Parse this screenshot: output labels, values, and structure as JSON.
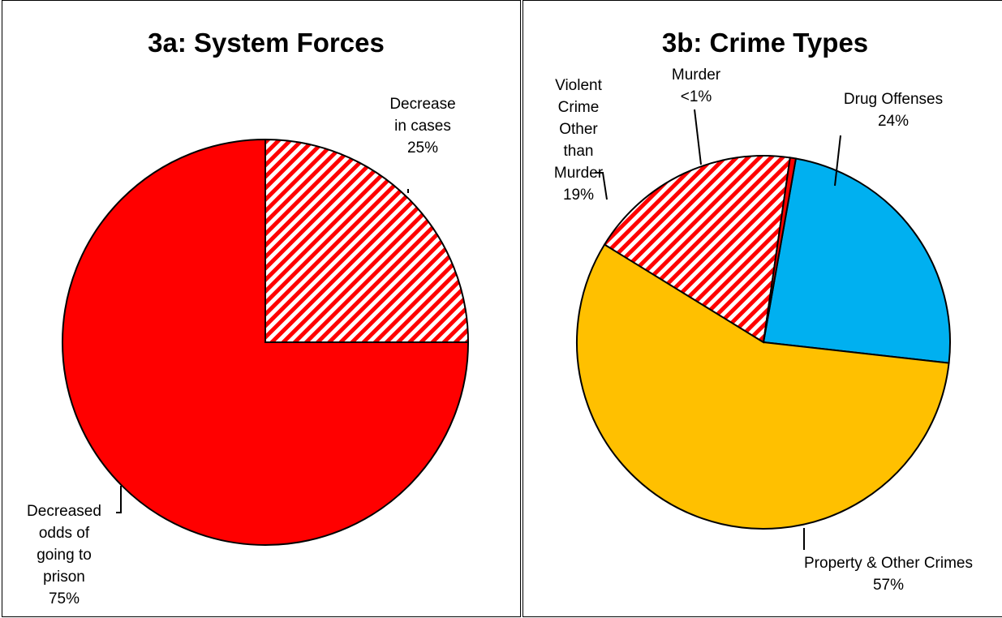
{
  "chart_data": [
    {
      "type": "pie",
      "title": "3a: System Forces",
      "slices": [
        {
          "label": [
            "Decrease",
            "in cases"
          ],
          "pct_label": "25%",
          "value": 25,
          "color": "#ff0000",
          "pattern": "hatched"
        },
        {
          "label": [
            "Decreased",
            "odds of",
            "going to",
            "prison"
          ],
          "pct_label": "75%",
          "value": 75,
          "color": "#ff0000",
          "pattern": "solid"
        }
      ],
      "legend": "none"
    },
    {
      "type": "pie",
      "title": "3b: Crime Types",
      "slices": [
        {
          "label": [
            "Drug Offenses"
          ],
          "pct_label": "24%",
          "value": 24,
          "color": "#00b0f0",
          "pattern": "solid"
        },
        {
          "label": [
            "Property & Other Crimes"
          ],
          "pct_label": "57%",
          "value": 57,
          "color": "#ffc000",
          "pattern": "solid"
        },
        {
          "label": [
            "Violent",
            "Crime",
            "Other",
            "than",
            "Murder"
          ],
          "pct_label": "19%",
          "value": 18.5,
          "color": "#ff0000",
          "pattern": "hatched"
        },
        {
          "label": [
            "Murder"
          ],
          "pct_label": "<1%",
          "value": 0.5,
          "color": "#ff0000",
          "pattern": "solid"
        }
      ],
      "legend": "none"
    }
  ]
}
